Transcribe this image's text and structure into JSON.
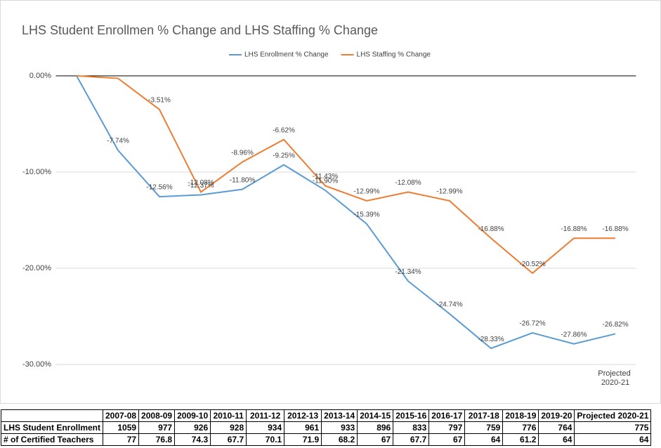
{
  "chart_data": {
    "type": "line",
    "title": "LHS Student Enrollmen % Change and LHS Staffing % Change",
    "categories": [
      "2007-08",
      "2008-09",
      "2009-10",
      "2010-11",
      "2011-12",
      "2012-13",
      "2013-14",
      "2014-15",
      "2015-16",
      "2016-17",
      "2017-18",
      "2018-19",
      "2019-20",
      "Projected 2020-21"
    ],
    "series": [
      {
        "name": "LHS Enrollment % Change",
        "color": "#5b9bd5",
        "values": [
          0,
          -7.74,
          -12.56,
          -12.37,
          -11.8,
          -9.25,
          -11.9,
          -15.39,
          -21.34,
          -24.74,
          -28.33,
          -26.72,
          -27.86,
          -26.82
        ],
        "value_labels": [
          null,
          "-7.74%",
          "-12.56%",
          "-12.37%",
          "-11.80%",
          "-9.25%",
          "-11.90%",
          "-15.39%",
          "-21.34%",
          "-24.74%",
          "-28.33%",
          "-26.72%",
          "-27.86%",
          "-26.82%"
        ]
      },
      {
        "name": "LHS Staffing % Change",
        "color": "#ed7d31",
        "values": [
          0,
          -0.26,
          -3.51,
          -12.08,
          -8.96,
          -6.62,
          -11.43,
          -12.99,
          -12.08,
          -12.99,
          -16.88,
          -20.52,
          -16.88,
          -16.88
        ],
        "value_labels": [
          null,
          null,
          "-3.51%",
          "-12.08%",
          "-8.96%",
          "-6.62%",
          "-11.43%",
          "-12.99%",
          "-12.08%",
          "-12.99%",
          "-16.88%",
          "-20.52%",
          "-16.88%",
          "-16.88%"
        ]
      }
    ],
    "ylim": [
      -30,
      0
    ],
    "yticks": [
      {
        "value": 0,
        "label": "0.00%"
      },
      {
        "value": -10,
        "label": "-10.00%"
      },
      {
        "value": -20,
        "label": "-20.00%"
      },
      {
        "value": -30,
        "label": "-30.00%"
      }
    ],
    "grid": true,
    "legend": "top"
  },
  "table": {
    "columns": [
      "2007-08",
      "2008-09",
      "2009-10",
      "2010-11",
      "2011-12",
      "2012-13",
      "2013-14",
      "2014-15",
      "2015-16",
      "2016-17",
      "2017-18",
      "2018-19",
      "2019-20",
      "Projected 2020-21"
    ],
    "rows": [
      [
        "LHS Student Enrollment",
        1059,
        977,
        926,
        928,
        934,
        961,
        933,
        896,
        833,
        797,
        759,
        776,
        764,
        775
      ],
      [
        "# of Certified Teachers",
        77,
        76.8,
        74.3,
        67.7,
        70.1,
        71.9,
        68.2,
        67,
        67.7,
        67,
        64,
        61.2,
        64,
        64
      ]
    ]
  }
}
